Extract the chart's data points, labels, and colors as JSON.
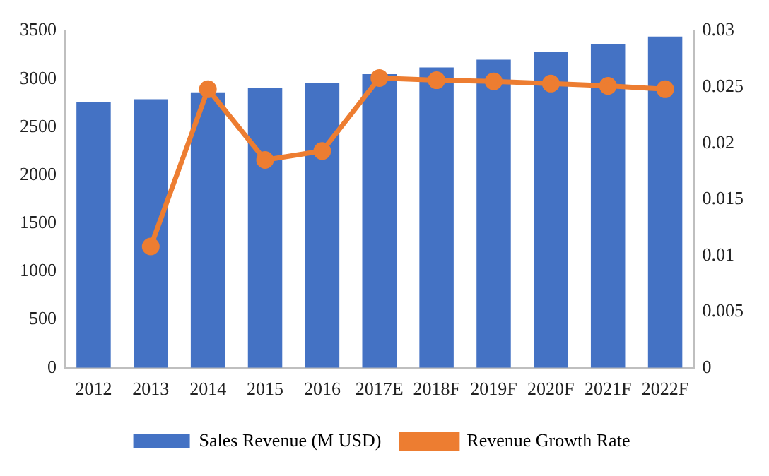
{
  "chart_data": {
    "type": "bar",
    "categories": [
      "2012",
      "2013",
      "2014",
      "2015",
      "2016",
      "2017E",
      "2018F",
      "2019F",
      "2020F",
      "2021F",
      "2022F"
    ],
    "series": [
      {
        "name": "Sales Revenue (M USD)",
        "color": "#4472c4",
        "values": [
          2760,
          2790,
          2860,
          2910,
          2960,
          3050,
          3120,
          3200,
          3280,
          3360,
          3440
        ]
      },
      {
        "name": "Revenue Growth Rate",
        "type": "line",
        "axis": "y2",
        "color": "#ed7d31",
        "marker": "circle",
        "values": [
          null,
          0.0108,
          0.0248,
          0.0185,
          0.0193,
          0.0258,
          0.0256,
          0.0255,
          0.0253,
          0.0251,
          0.0248
        ]
      }
    ],
    "ylim": [
      0,
      3500
    ],
    "yticks": [
      0,
      500,
      1000,
      1500,
      2000,
      2500,
      3000,
      3500
    ],
    "y2lim": [
      0,
      0.03
    ],
    "y2ticks": [
      0,
      0.005,
      0.01,
      0.015,
      0.02,
      0.025,
      0.03
    ],
    "grid": false,
    "legend": "bottom"
  }
}
